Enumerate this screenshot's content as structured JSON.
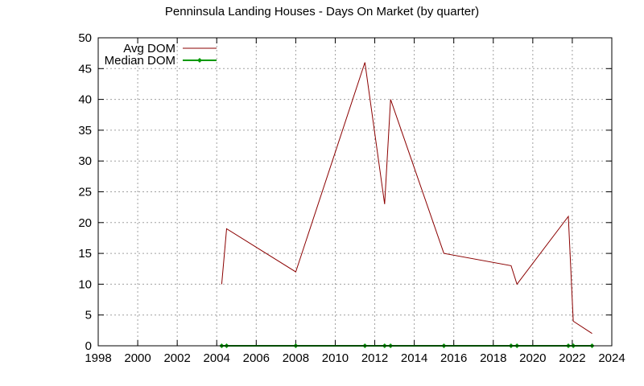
{
  "chart_data": {
    "type": "line",
    "title": "Penninsula Landing Houses - Days On Market (by quarter)",
    "xlabel": "",
    "ylabel": "",
    "xlim": [
      1998,
      2024
    ],
    "ylim": [
      0,
      50
    ],
    "xticks": [
      1998,
      2000,
      2002,
      2004,
      2006,
      2008,
      2010,
      2012,
      2014,
      2016,
      2018,
      2020,
      2022,
      2024
    ],
    "yticks": [
      0,
      5,
      10,
      15,
      20,
      25,
      30,
      35,
      40,
      45,
      50
    ],
    "grid": true,
    "legend_position": "top-left",
    "series": [
      {
        "name": "Avg DOM",
        "color": "#8b0000",
        "marker": "none",
        "x": [
          2004.25,
          2004.5,
          2008.0,
          2011.5,
          2012.5,
          2012.8,
          2015.5,
          2018.9,
          2019.2,
          2021.8,
          2022.05,
          2023.0
        ],
        "y": [
          10,
          19,
          12,
          46,
          23,
          40,
          15,
          13,
          10,
          21,
          4,
          2
        ]
      },
      {
        "name": "Median DOM",
        "color": "#009900",
        "marker": "diamond",
        "x": [
          2004.25,
          2004.5,
          2008.0,
          2011.5,
          2012.5,
          2012.8,
          2015.5,
          2018.9,
          2019.2,
          2021.8,
          2022.05,
          2023.0
        ],
        "y": [
          0,
          0,
          0,
          0,
          0,
          0,
          0,
          0,
          0,
          0,
          0,
          0
        ]
      }
    ]
  }
}
